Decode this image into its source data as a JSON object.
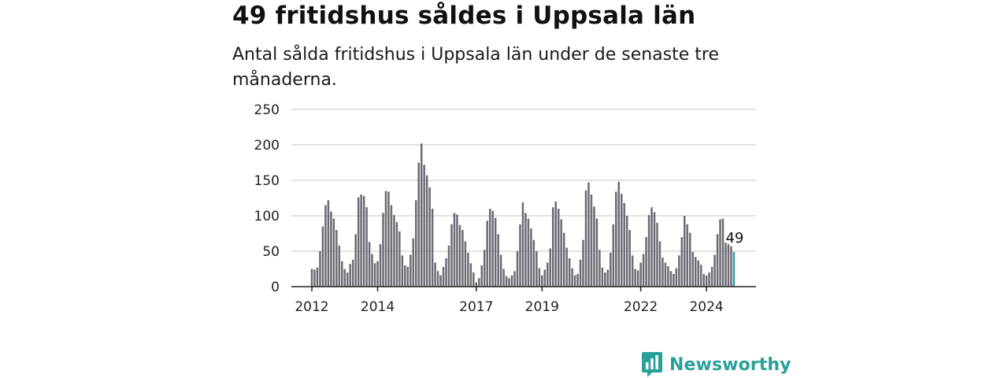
{
  "header": {
    "title": "49 fritidshus såldes i Uppsala län",
    "subtitle": "Antal sålda fritidshus i Uppsala län under de senaste tre månaderna."
  },
  "brand": {
    "name": "Newsworthy",
    "color": "#2aa198",
    "icon": "newsworthy-logo-icon"
  },
  "chart_data": {
    "type": "bar",
    "title": "",
    "xlabel": "",
    "ylabel": "",
    "ylim": [
      0,
      250
    ],
    "yticks": [
      0,
      50,
      100,
      150,
      200,
      250
    ],
    "grid": true,
    "legend": "none",
    "bar_color": "#6b6b73",
    "highlight_color": "#2aa198",
    "start": "2012-01",
    "xtick_labels": [
      {
        "label": "2012",
        "month": "2012-01"
      },
      {
        "label": "2014",
        "month": "2014-01"
      },
      {
        "label": "2017",
        "month": "2017-01"
      },
      {
        "label": "2019",
        "month": "2019-01"
      },
      {
        "label": "2022",
        "month": "2022-01"
      },
      {
        "label": "2024",
        "month": "2024-01"
      }
    ],
    "highlight_label": "49",
    "values": [
      25,
      24,
      27,
      50,
      85,
      115,
      122,
      106,
      96,
      80,
      58,
      36,
      25,
      20,
      32,
      38,
      74,
      126,
      130,
      128,
      112,
      63,
      46,
      33,
      36,
      60,
      104,
      135,
      134,
      115,
      101,
      91,
      78,
      44,
      30,
      28,
      45,
      68,
      122,
      175,
      202,
      172,
      157,
      140,
      110,
      34,
      22,
      16,
      28,
      40,
      58,
      88,
      104,
      102,
      87,
      80,
      64,
      48,
      33,
      20,
      6,
      12,
      30,
      52,
      93,
      110,
      107,
      97,
      74,
      45,
      25,
      15,
      12,
      16,
      22,
      50,
      88,
      119,
      104,
      96,
      82,
      66,
      50,
      26,
      16,
      24,
      34,
      54,
      112,
      120,
      110,
      95,
      76,
      55,
      40,
      26,
      16,
      18,
      38,
      66,
      136,
      147,
      130,
      113,
      96,
      52,
      27,
      20,
      24,
      48,
      88,
      134,
      148,
      131,
      118,
      100,
      80,
      44,
      25,
      23,
      34,
      46,
      70,
      101,
      112,
      105,
      90,
      64,
      41,
      34,
      29,
      22,
      18,
      26,
      44,
      70,
      100,
      88,
      76,
      49,
      42,
      37,
      31,
      18,
      16,
      20,
      28,
      45,
      74,
      95,
      96,
      62,
      60,
      57,
      49
    ]
  }
}
